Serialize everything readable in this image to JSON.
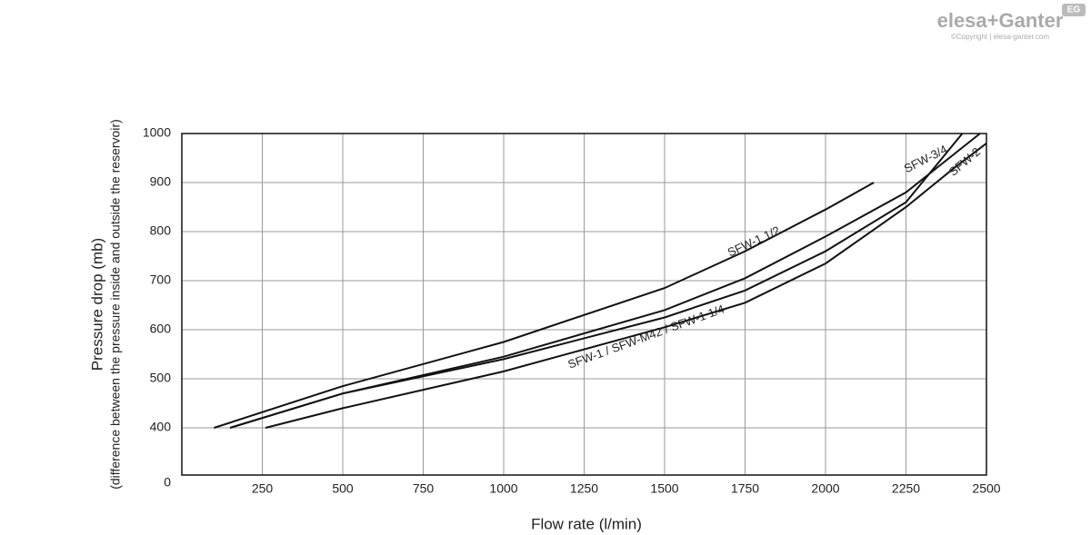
{
  "brand": {
    "name": "elesa+Ganter",
    "copyright": "©Copyright | elesa-ganter.com",
    "badge": "EG"
  },
  "chart_data": {
    "type": "line",
    "x_label": "Flow rate (l/min)",
    "y_label": "Pressure drop (mb)",
    "y_sublabel": "(difference between the pressure inside and outside the reservoir)",
    "xlim": [
      0,
      2500
    ],
    "xticks": [
      250,
      500,
      750,
      1000,
      1250,
      1500,
      1750,
      2000,
      2250,
      2500
    ],
    "ylim": [
      0,
      1000
    ],
    "yticks": [
      0,
      400,
      500,
      600,
      700,
      800,
      900,
      1000
    ],
    "grid": true,
    "series": [
      {
        "name": "SFW-1 1/2",
        "color": "#111111",
        "x": [
          100,
          500,
          1000,
          1500,
          1750,
          2000,
          2150
        ],
        "values": [
          400,
          485,
          575,
          685,
          760,
          845,
          900
        ]
      },
      {
        "name": "SFW-3/4",
        "color": "#111111",
        "x": [
          150,
          500,
          1000,
          1500,
          1750,
          2000,
          2250,
          2480
        ],
        "values": [
          400,
          470,
          545,
          640,
          705,
          790,
          880,
          1000
        ]
      },
      {
        "name": "SFW-1 / SFW-M42 / SFW-1 1/4",
        "color": "#111111",
        "x": [
          150,
          500,
          1000,
          1500,
          1750,
          2000,
          2250,
          2425
        ],
        "values": [
          400,
          470,
          540,
          625,
          680,
          760,
          860,
          1000
        ]
      },
      {
        "name": "SFW-2",
        "color": "#111111",
        "x": [
          260,
          500,
          1000,
          1500,
          1750,
          2000,
          2250,
          2400,
          2500
        ],
        "values": [
          400,
          440,
          515,
          605,
          655,
          735,
          850,
          930,
          980
        ]
      }
    ]
  }
}
